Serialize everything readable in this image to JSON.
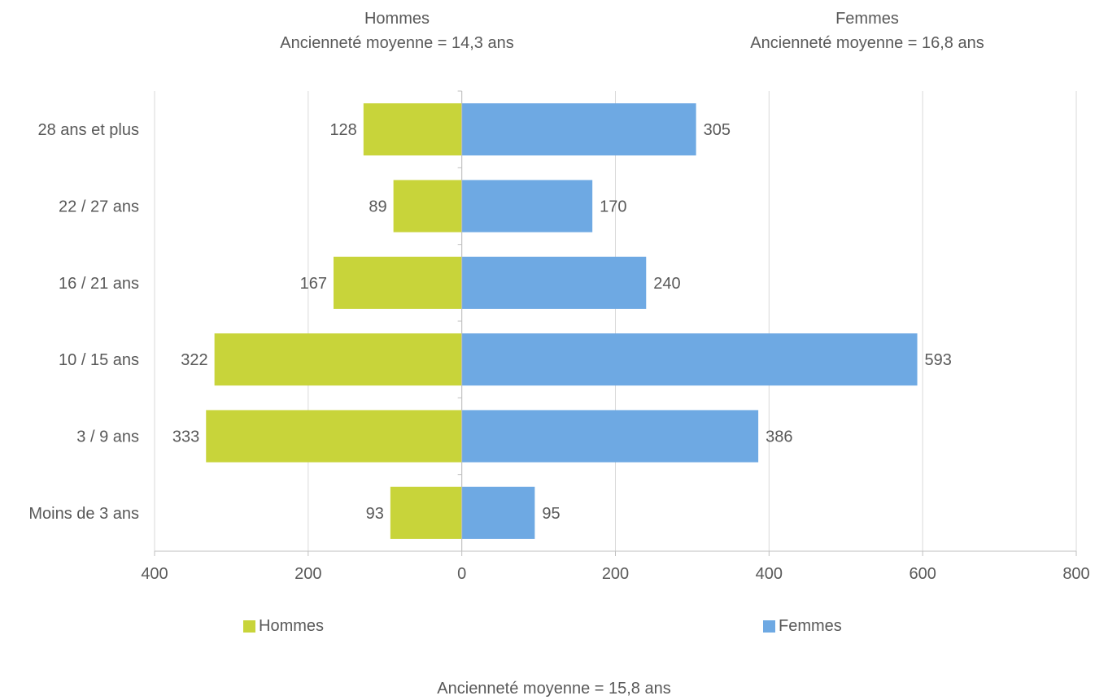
{
  "header_left": {
    "line1": "Hommes",
    "line2": "Ancienneté moyenne = 14,3 ans"
  },
  "header_right": {
    "line1": "Femmes",
    "line2": "Ancienneté moyenne = 16,8 ans"
  },
  "footer": "Ancienneté moyenne = 15,8 ans",
  "chart_data": {
    "type": "bar",
    "orientation": "horizontal",
    "layout": "population-pyramid",
    "categories": [
      "28 ans et plus",
      "22 / 27 ans",
      "16 / 21 ans",
      "10 / 15 ans",
      "3 / 9 ans",
      "Moins de 3 ans"
    ],
    "series": [
      {
        "name": "Hommes",
        "side": "left",
        "color": "#c8d43a",
        "values": [
          128,
          89,
          167,
          322,
          333,
          93
        ]
      },
      {
        "name": "Femmes",
        "side": "right",
        "color": "#6ea9e3",
        "values": [
          305,
          170,
          240,
          593,
          386,
          95
        ]
      }
    ],
    "xlim": [
      -400,
      800
    ],
    "x_ticks": [
      -400,
      -200,
      0,
      200,
      400,
      600,
      800
    ],
    "x_tick_labels": [
      "400",
      "200",
      "0",
      "200",
      "400",
      "600",
      "800"
    ],
    "grid": true,
    "data_labels": true,
    "legend_position": "bottom"
  }
}
